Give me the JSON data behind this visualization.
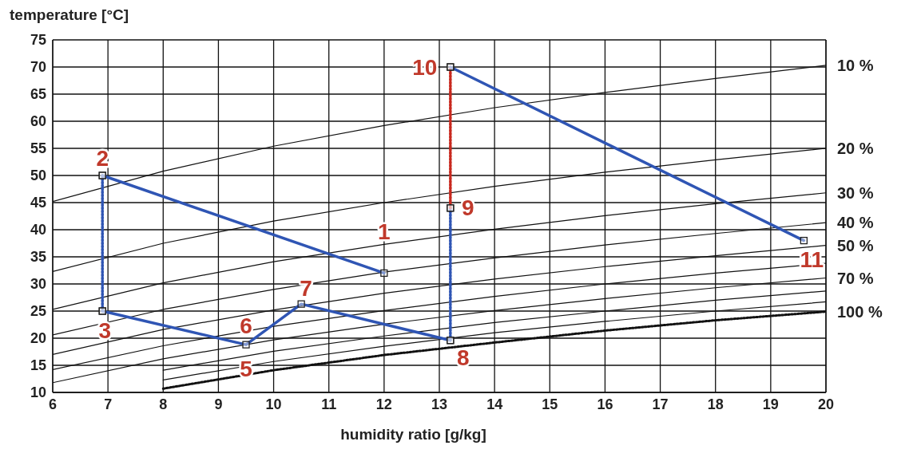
{
  "chart_data": {
    "type": "line",
    "xlabel": "humidity ratio [g/kg]",
    "ylabel": "temperature [°C]",
    "xlim": [
      6,
      20
    ],
    "ylim": [
      10,
      75
    ],
    "xticks": [
      6,
      7,
      8,
      9,
      10,
      11,
      12,
      13,
      14,
      15,
      16,
      17,
      18,
      19,
      20
    ],
    "yticks": [
      10,
      15,
      20,
      25,
      30,
      35,
      40,
      45,
      50,
      55,
      60,
      65,
      70,
      75
    ],
    "grid": true,
    "series": [
      {
        "name": "10 %",
        "color": "#111111",
        "line_style": "solid",
        "marker": "none",
        "x": [
          6,
          8,
          10,
          12,
          14,
          16,
          18,
          20
        ],
        "values": [
          45.2,
          50.8,
          55.4,
          59.2,
          62.5,
          65.3,
          67.9,
          70.3
        ]
      },
      {
        "name": "20 %",
        "color": "#111111",
        "line_style": "solid",
        "marker": "none",
        "x": [
          6,
          8,
          10,
          12,
          14,
          16,
          18,
          20
        ],
        "values": [
          32.3,
          37.5,
          41.6,
          45.0,
          48.0,
          50.6,
          52.9,
          55.0
        ]
      },
      {
        "name": "30 %",
        "color": "#111111",
        "line_style": "solid",
        "marker": "none",
        "x": [
          6,
          8,
          10,
          12,
          14,
          16,
          18,
          20
        ],
        "values": [
          25.3,
          30.2,
          34.1,
          37.3,
          40.1,
          42.6,
          44.8,
          46.8
        ]
      },
      {
        "name": "40 %",
        "color": "#111111",
        "line_style": "solid",
        "marker": "none",
        "x": [
          6,
          8,
          10,
          12,
          14,
          16,
          18,
          20
        ],
        "values": [
          20.6,
          25.3,
          29.0,
          32.2,
          34.8,
          37.2,
          39.3,
          41.3
        ]
      },
      {
        "name": "50 %",
        "color": "#111111",
        "line_style": "solid",
        "marker": "none",
        "x": [
          6,
          8,
          10,
          12,
          14,
          16,
          18,
          20
        ],
        "values": [
          17.0,
          21.6,
          25.2,
          28.3,
          30.9,
          33.2,
          35.2,
          37.1
        ]
      },
      {
        "color": "#111111",
        "line_style": "solid",
        "marker": "none",
        "x": [
          6,
          8,
          10,
          12,
          14,
          16,
          18,
          20
        ],
        "values": [
          14.2,
          18.6,
          22.2,
          25.1,
          27.7,
          30.0,
          32.0,
          33.8
        ]
      },
      {
        "name": "70 %",
        "color": "#111111",
        "line_style": "solid",
        "marker": "none",
        "x": [
          6,
          8,
          10,
          12,
          14,
          16,
          18,
          20
        ],
        "values": [
          11.8,
          16.2,
          19.7,
          22.6,
          25.1,
          27.3,
          29.3,
          31.1
        ]
      },
      {
        "color": "#111111",
        "line_style": "solid",
        "marker": "none",
        "x": [
          8,
          10,
          12,
          14,
          16,
          18,
          20
        ],
        "values": [
          14.1,
          17.6,
          20.4,
          22.9,
          25.0,
          27.0,
          28.7
        ]
      },
      {
        "color": "#111111",
        "line_style": "solid",
        "marker": "none",
        "x": [
          8,
          10,
          12,
          14,
          16,
          18,
          20
        ],
        "values": [
          12.3,
          15.7,
          18.5,
          21.0,
          23.1,
          25.0,
          26.7
        ]
      },
      {
        "name": "100 %",
        "color": "#111111",
        "line_style": "dotted",
        "marker": "none",
        "x": [
          8,
          10,
          12,
          14,
          16,
          18,
          20
        ],
        "values": [
          10.7,
          14.1,
          16.9,
          19.2,
          21.4,
          23.3,
          24.9
        ]
      },
      {
        "color": "#2f55b4",
        "line_style": "solid",
        "marker": "square",
        "x": [
          12,
          6.9
        ],
        "values": [
          32,
          50
        ]
      },
      {
        "color": "#2f55b4",
        "line_style": "dotted",
        "marker": "square",
        "x": [
          6.9,
          6.9
        ],
        "values": [
          50,
          25
        ]
      },
      {
        "color": "#2f55b4",
        "line_style": "solid",
        "marker": "square",
        "x": [
          6.9,
          9.5,
          10.5,
          13.2
        ],
        "values": [
          25,
          18.8,
          26.3,
          19.6
        ]
      },
      {
        "color": "#2f55b4",
        "line_style": "dotted",
        "marker": "square",
        "x": [
          13.2,
          13.2
        ],
        "values": [
          19.6,
          44
        ]
      },
      {
        "color": "#c8281e",
        "line_style": "dotted",
        "marker": "square",
        "x": [
          13.2,
          13.2
        ],
        "values": [
          44,
          70
        ]
      },
      {
        "color": "#2f55b4",
        "line_style": "solid",
        "marker": "square",
        "x": [
          13.2,
          19.6
        ],
        "values": [
          70,
          38
        ]
      }
    ],
    "annotations": [
      {
        "text": "1",
        "x": 12,
        "y": 32
      },
      {
        "text": "2",
        "x": 6.9,
        "y": 50
      },
      {
        "text": "3",
        "x": 6.9,
        "y": 25
      },
      {
        "text": "5",
        "x": 9.5,
        "y": 18.8
      },
      {
        "text": "6",
        "x": 9.5,
        "y": 18.8
      },
      {
        "text": "7",
        "x": 10.5,
        "y": 26.3
      },
      {
        "text": "8",
        "x": 13.2,
        "y": 19.6
      },
      {
        "text": "9",
        "x": 13.2,
        "y": 44
      },
      {
        "text": "10",
        "x": 13.2,
        "y": 70
      },
      {
        "text": "11",
        "x": 19.6,
        "y": 38
      }
    ]
  }
}
